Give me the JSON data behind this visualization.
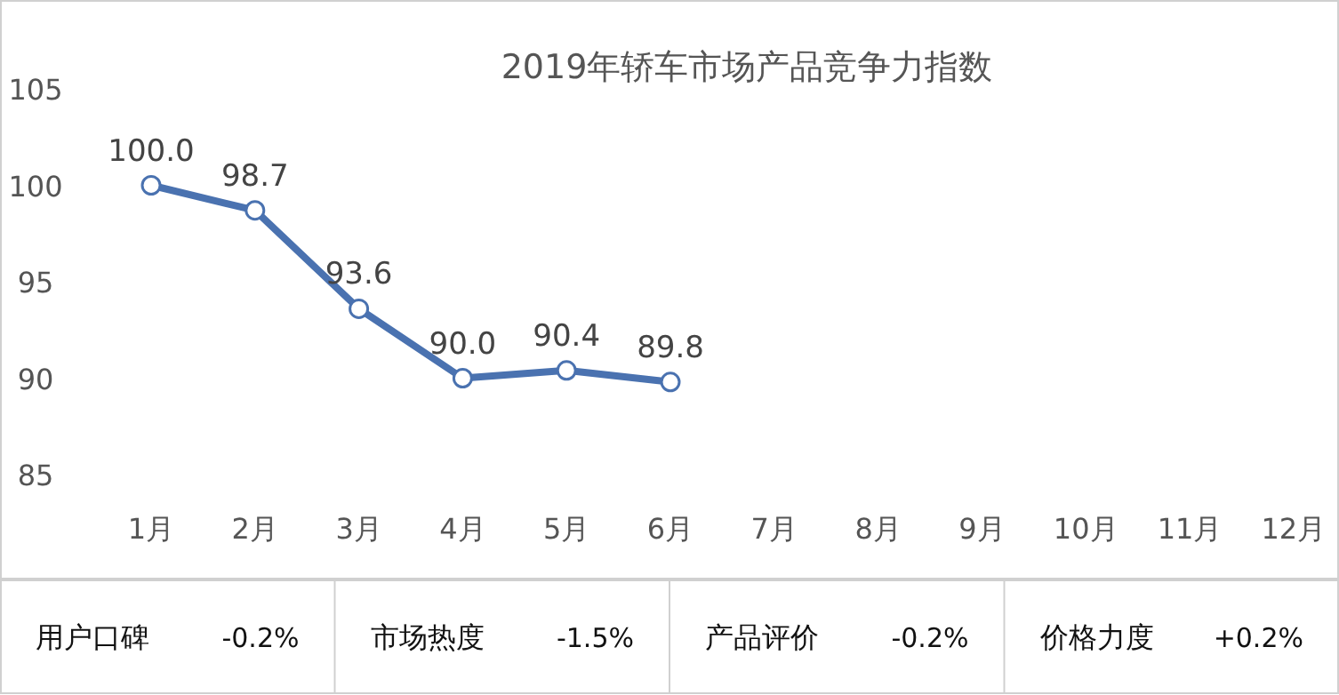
{
  "chart_data": {
    "type": "line",
    "title": "2019年轿车市场产品竞争力指数",
    "categories": [
      "1月",
      "2月",
      "3月",
      "4月",
      "5月",
      "6月",
      "7月",
      "8月",
      "9月",
      "10月",
      "11月",
      "12月"
    ],
    "series": [
      {
        "color": "#4a72b0",
        "values": [
          100.0,
          98.7,
          93.6,
          90.0,
          90.4,
          89.8,
          null,
          null,
          null,
          null,
          null,
          null
        ],
        "value_labels": [
          "100.0",
          "98.7",
          "93.6",
          "90.0",
          "90.4",
          "89.8",
          null,
          null,
          null,
          null,
          null,
          null
        ]
      }
    ],
    "ylim": [
      85,
      105
    ],
    "yticks": [
      85,
      90,
      95,
      100,
      105
    ],
    "marker": "circle",
    "line_style": "solid",
    "annotations": [
      "用户口碑",
      "-0.2%",
      "市场热度",
      "-1.5%",
      "产品评价",
      "-0.2%",
      "价格力度",
      "+0.2%"
    ]
  }
}
